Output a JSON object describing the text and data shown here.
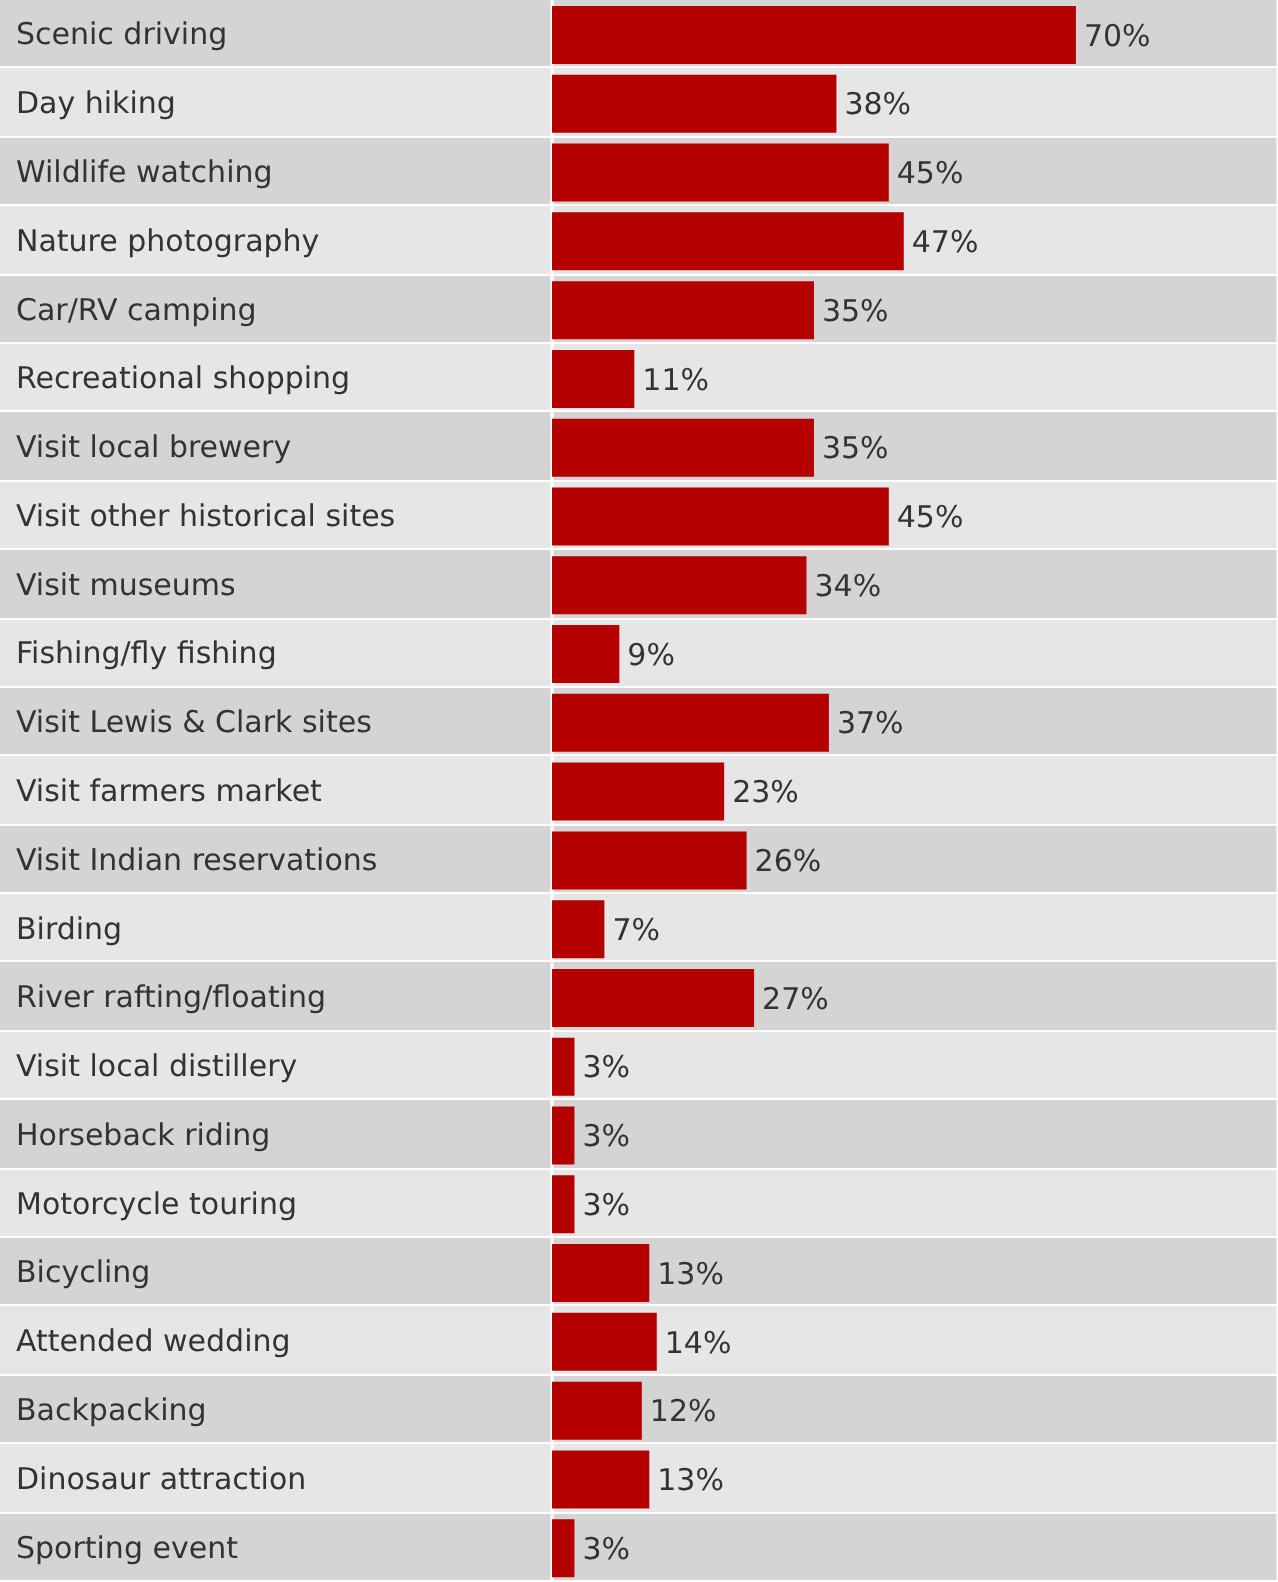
{
  "chart_data": {
    "type": "bar",
    "orientation": "horizontal",
    "categories": [
      "Scenic driving",
      "Day hiking",
      "Wildlife watching",
      "Nature photography",
      "Car/RV camping",
      "Recreational shopping",
      "Visit local brewery",
      "Visit other historical sites",
      "Visit museums",
      "Fishing/fly fishing",
      "Visit Lewis & Clark sites",
      "Visit farmers market",
      "Visit Indian reservations",
      "Birding",
      "River rafting/floating",
      "Visit local distillery",
      "Horseback riding",
      "Motorcycle touring",
      "Bicycling",
      "Attended wedding",
      "Backpacking",
      "Dinosaur attraction",
      "Sporting event"
    ],
    "values": [
      70,
      38,
      45,
      47,
      35,
      11,
      35,
      45,
      34,
      9,
      37,
      23,
      26,
      7,
      27,
      3,
      3,
      3,
      13,
      14,
      12,
      13,
      3
    ],
    "value_labels": [
      "70%",
      "38%",
      "45%",
      "47%",
      "35%",
      "11%",
      "35%",
      "45%",
      "34%",
      "9%",
      "37%",
      "23%",
      "26%",
      "7%",
      "27%",
      "3%",
      "3%",
      "3%",
      "13%",
      "14%",
      "12%",
      "13%",
      "3%"
    ],
    "color": "#b50000",
    "xlim": [
      0,
      97
    ],
    "grid": "x",
    "tick_labels": "y"
  }
}
